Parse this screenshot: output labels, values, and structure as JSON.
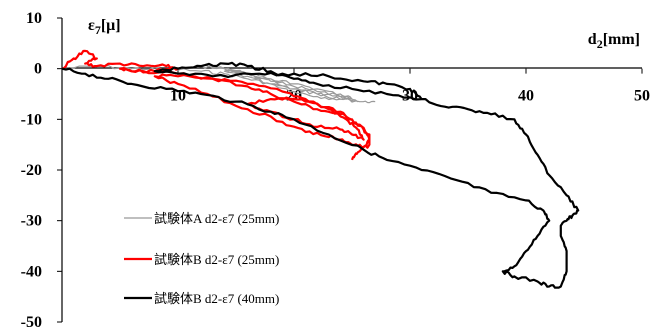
{
  "chart_data": {
    "type": "line",
    "xlabel": "d2[mm]",
    "ylabel": "ε7[μ]",
    "xlim": [
      0,
      50
    ],
    "ylim": [
      -50,
      10
    ],
    "x_ticks": [
      "10",
      "20",
      "30",
      "40",
      "50"
    ],
    "y_ticks": [
      "10",
      "0",
      "-10",
      "-20",
      "-30",
      "-40",
      "-50"
    ],
    "grid": false,
    "legend_position": "bottom-left",
    "series": [
      {
        "name": "試験体A d2-ε7 (25mm)",
        "color": "#999999",
        "points": [
          [
            0,
            0
          ],
          [
            3,
            0.5
          ],
          [
            6,
            0
          ],
          [
            9,
            0
          ],
          [
            12,
            -0.5
          ],
          [
            14,
            -1
          ],
          [
            16,
            -2
          ],
          [
            18,
            -3
          ],
          [
            20,
            -4
          ],
          [
            22,
            -5
          ],
          [
            24,
            -5.5
          ],
          [
            25,
            -6
          ],
          [
            24,
            -5
          ],
          [
            22,
            -4
          ],
          [
            20,
            -3
          ],
          [
            18,
            -2
          ],
          [
            16,
            -1
          ],
          [
            14,
            0
          ],
          [
            12,
            0.5
          ],
          [
            14,
            0
          ],
          [
            16,
            -1
          ],
          [
            18,
            -2.5
          ],
          [
            20,
            -4
          ],
          [
            22,
            -5
          ],
          [
            24,
            -6
          ],
          [
            25.5,
            -6.5
          ],
          [
            24,
            -5.5
          ],
          [
            22,
            -4.5
          ],
          [
            20,
            -3.5
          ],
          [
            18,
            -2
          ],
          [
            16,
            -1
          ],
          [
            14,
            -0.5
          ],
          [
            16,
            -1.5
          ],
          [
            18,
            -3
          ],
          [
            20,
            -4.5
          ],
          [
            22,
            -5.5
          ],
          [
            24,
            -6
          ],
          [
            26,
            -6.5
          ],
          [
            27,
            -6.5
          ]
        ]
      },
      {
        "name": "試験体B d2-ε7 (25mm)",
        "color": "#ff0000",
        "points": [
          [
            0,
            0
          ],
          [
            1,
            2
          ],
          [
            2,
            3.5
          ],
          [
            3,
            2
          ],
          [
            2,
            1
          ],
          [
            3,
            0.5
          ],
          [
            5,
            1
          ],
          [
            7,
            0.5
          ],
          [
            9,
            0.5
          ],
          [
            10,
            0
          ],
          [
            8,
            -0.5
          ],
          [
            6,
            -0.5
          ],
          [
            5,
            0
          ],
          [
            7,
            -0.5
          ],
          [
            10,
            -1
          ],
          [
            13,
            -2
          ],
          [
            16,
            -3.5
          ],
          [
            18,
            -5
          ],
          [
            20,
            -6.5
          ],
          [
            22,
            -8
          ],
          [
            24,
            -9
          ],
          [
            25,
            -10
          ],
          [
            26,
            -12
          ],
          [
            26.5,
            -14
          ],
          [
            26,
            -15.5
          ],
          [
            25,
            -15
          ],
          [
            24,
            -14
          ],
          [
            23,
            -13.5
          ],
          [
            21,
            -12.5
          ],
          [
            19,
            -10.5
          ],
          [
            16,
            -8
          ],
          [
            13,
            -5.5
          ],
          [
            10,
            -3
          ],
          [
            8,
            -1.5
          ],
          [
            10,
            -1.5
          ],
          [
            13,
            -2
          ],
          [
            16,
            -3
          ],
          [
            19,
            -4.5
          ],
          [
            21,
            -6
          ],
          [
            23,
            -8
          ],
          [
            24.5,
            -10
          ],
          [
            25.5,
            -12
          ],
          [
            26,
            -14
          ],
          [
            25,
            -13
          ],
          [
            24,
            -12
          ],
          [
            22,
            -11.5
          ],
          [
            20,
            -10
          ],
          [
            18,
            -8.5
          ],
          [
            16,
            -7
          ],
          [
            18,
            -6
          ],
          [
            20,
            -6
          ],
          [
            22,
            -7
          ],
          [
            24,
            -8.5
          ],
          [
            25.5,
            -11
          ],
          [
            26.5,
            -13
          ],
          [
            26.5,
            -15
          ],
          [
            25.5,
            -16.5
          ],
          [
            25,
            -18
          ]
        ]
      },
      {
        "name": "試験体B d2-ε7 (40mm)",
        "color": "#000000",
        "points": [
          [
            0,
            0
          ],
          [
            2,
            -1
          ],
          [
            4,
            -2
          ],
          [
            6,
            -3
          ],
          [
            9,
            -4
          ],
          [
            12,
            -5
          ],
          [
            15,
            -6.5
          ],
          [
            18,
            -8.5
          ],
          [
            20,
            -10
          ],
          [
            23,
            -13
          ],
          [
            26,
            -16
          ],
          [
            28,
            -18
          ],
          [
            31,
            -20
          ],
          [
            34,
            -22
          ],
          [
            37,
            -24.5
          ],
          [
            40,
            -26
          ],
          [
            41.5,
            -28
          ],
          [
            42,
            -30
          ],
          [
            41,
            -33
          ],
          [
            40,
            -36
          ],
          [
            39,
            -39
          ],
          [
            38,
            -40
          ],
          [
            39,
            -41
          ],
          [
            41,
            -42
          ],
          [
            42,
            -43
          ],
          [
            43,
            -43
          ],
          [
            43.5,
            -40
          ],
          [
            43.5,
            -36
          ],
          [
            43,
            -33
          ],
          [
            43,
            -31
          ],
          [
            43.5,
            -30
          ],
          [
            44,
            -29
          ],
          [
            44.5,
            -28
          ],
          [
            43.5,
            -25
          ],
          [
            42,
            -21
          ],
          [
            41,
            -17
          ],
          [
            40,
            -13
          ],
          [
            39,
            -10
          ],
          [
            37,
            -9
          ],
          [
            35,
            -8
          ],
          [
            33,
            -7.5
          ],
          [
            31,
            -6
          ],
          [
            28,
            -5
          ],
          [
            25,
            -4
          ],
          [
            22,
            -3
          ],
          [
            20,
            -2
          ],
          [
            18,
            -0.5
          ],
          [
            16,
            0.5
          ],
          [
            14,
            1
          ],
          [
            12,
            0.5
          ],
          [
            10,
            0
          ],
          [
            8,
            -0.5
          ],
          [
            10,
            -1
          ],
          [
            13,
            -1.5
          ],
          [
            17,
            -1
          ],
          [
            20,
            -1
          ],
          [
            23,
            -1.5
          ],
          [
            26,
            -2.5
          ],
          [
            28,
            -3
          ],
          [
            30,
            -4
          ],
          [
            31,
            -6
          ]
        ]
      }
    ]
  }
}
